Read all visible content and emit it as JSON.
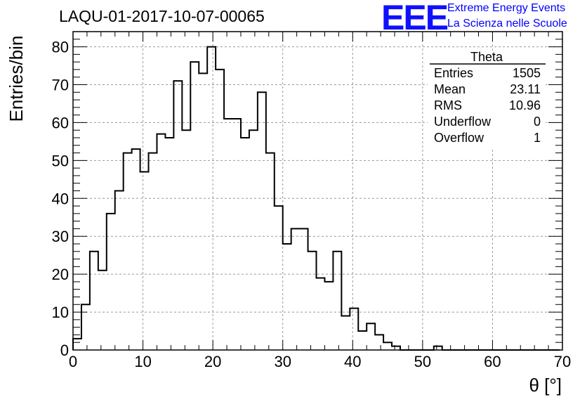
{
  "title": "LAQU-01-2017-10-07-00065",
  "logo": {
    "text": "EEE",
    "line1": "Extreme Energy Events",
    "line2": "La Scienza nelle Scuole",
    "color": "#1010ff"
  },
  "stats_box": {
    "header": "Theta",
    "rows": [
      {
        "label": "Entries",
        "value": "1505"
      },
      {
        "label": "Mean",
        "value": "23.11"
      },
      {
        "label": "RMS",
        "value": "10.96"
      },
      {
        "label": "Underflow",
        "value": "0"
      },
      {
        "label": "Overflow",
        "value": "1"
      }
    ]
  },
  "chart_data": {
    "type": "bar",
    "histogram": true,
    "xlabel": "θ [°]",
    "ylabel": "Entries/bin",
    "xlim": [
      0,
      70
    ],
    "ylim": [
      0,
      84
    ],
    "grid": true,
    "bin_width": 1.2,
    "x_ticks": [
      0,
      10,
      20,
      30,
      40,
      50,
      60,
      70
    ],
    "y_ticks": [
      0,
      10,
      20,
      30,
      40,
      50,
      60,
      70,
      80
    ],
    "values": [
      3,
      12,
      26,
      21,
      36,
      42,
      52,
      53,
      47,
      52,
      57,
      56,
      71,
      58,
      76,
      73,
      80,
      74,
      61,
      61,
      56,
      58,
      68,
      52,
      38,
      28,
      32,
      32,
      26,
      19,
      18,
      26,
      9,
      11,
      5,
      7,
      4,
      2,
      1,
      0,
      0,
      0,
      0,
      1,
      0,
      0,
      0,
      0,
      0,
      0,
      0,
      0,
      0,
      0,
      0,
      0,
      0,
      0
    ],
    "line_color": "#000000"
  }
}
